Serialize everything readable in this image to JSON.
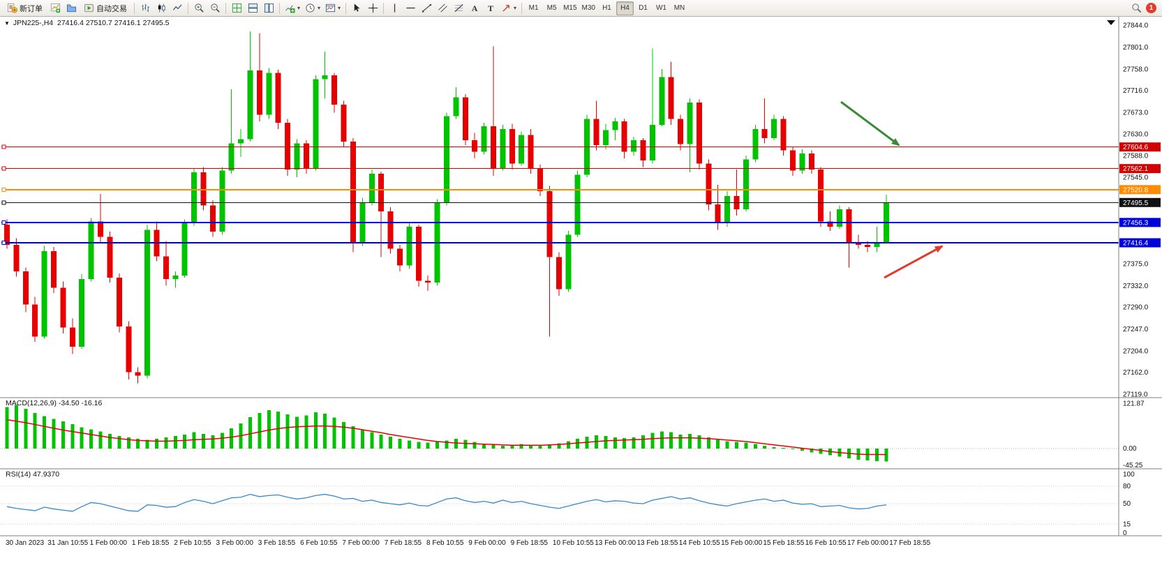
{
  "toolbar": {
    "new_order": "新订单",
    "autotrading": "自动交易",
    "text_tool": "A",
    "label_tool": "T",
    "timeframes": [
      "M1",
      "M5",
      "M15",
      "M30",
      "H1",
      "H4",
      "D1",
      "W1",
      "MN"
    ],
    "active_timeframe": "H4",
    "notification_count": "1"
  },
  "icons": {
    "caret_down": "▾",
    "chart_caret": "▼"
  },
  "chart": {
    "info_line": "JPN225-,H4  27416.4 27510.7 27416.1 27495.5",
    "macd_label": "MACD(12,26,9) -34.50 -16.16",
    "rsi_label": "RSI(14) 47.9370"
  },
  "chart_data": {
    "type": "candlestick",
    "symbol": "JPN225-",
    "timeframe": "H4",
    "ohlc_info": {
      "open": 27416.4,
      "high": 27510.7,
      "low": 27416.1,
      "close": 27495.5
    },
    "colors": {
      "up": "#00c400",
      "down": "#e60000",
      "macd_hist": "#00c400",
      "macd_signal": "#e60000",
      "rsi": "#3a87c8",
      "level_red": "#d40000",
      "level_orange": "#ff8c00",
      "level_blue": "#0000d8",
      "bid_line": "#111111",
      "arrow_green": "#3a8a3a",
      "arrow_red": "#e23b2e"
    },
    "price_axis": {
      "min": 27119.0,
      "max": 27844.0,
      "ticks": [
        27844.0,
        27801.0,
        27758.0,
        27716.0,
        27673.0,
        27630.0,
        27588.0,
        27545.0,
        27375.0,
        27332.0,
        27290.0,
        27247.0,
        27204.0,
        27162.0,
        27119.0
      ]
    },
    "time_labels": [
      "30 Jan 2023",
      "31 Jan 10:55",
      "1 Feb 00:00",
      "1 Feb 18:55",
      "2 Feb 10:55",
      "3 Feb 00:00",
      "3 Feb 18:55",
      "6 Feb 10:55",
      "7 Feb 00:00",
      "7 Feb 18:55",
      "8 Feb 10:55",
      "9 Feb 00:00",
      "9 Feb 18:55",
      "10 Feb 10:55",
      "13 Feb 00:00",
      "13 Feb 18:55",
      "14 Feb 10:55",
      "15 Feb 00:00",
      "15 Feb 18:55",
      "16 Feb 10:55",
      "17 Feb 00:00",
      "17 Feb 18:55"
    ],
    "levels": [
      {
        "price": 27604.6,
        "label": "27604.6",
        "color": "#d40000",
        "width": 1,
        "kind": "resistance"
      },
      {
        "price": 27562.1,
        "label": "27562.1",
        "color": "#d40000",
        "width": 1,
        "kind": "resistance"
      },
      {
        "price": 27520.8,
        "label": "27520.8",
        "color": "#ff8c00",
        "width": 2,
        "kind": "pivot"
      },
      {
        "price": 27495.5,
        "label": "27495.5",
        "color": "#111111",
        "width": 1,
        "kind": "bid"
      },
      {
        "price": 27456.3,
        "label": "27456.3",
        "color": "#0000d8",
        "width": 2,
        "kind": "support"
      },
      {
        "price": 27416.4,
        "label": "27416.4",
        "color": "#0000d8",
        "width": 2,
        "kind": "support"
      }
    ],
    "annotations": [
      {
        "kind": "arrow",
        "name": "green-arrow-annotation",
        "color": "#3a8a3a",
        "from": [
          1205,
          122
        ],
        "to": [
          1288,
          184
        ]
      },
      {
        "kind": "arrow",
        "name": "red-arrow-annotation",
        "color": "#e23b2e",
        "from": [
          1267,
          374
        ],
        "to": [
          1350,
          329
        ]
      }
    ],
    "candles": [
      [
        27452,
        27462,
        27405,
        27412
      ],
      [
        27412,
        27425,
        27350,
        27360
      ],
      [
        27360,
        27368,
        27280,
        27295
      ],
      [
        27295,
        27310,
        27222,
        27232
      ],
      [
        27232,
        27410,
        27228,
        27400
      ],
      [
        27400,
        27408,
        27318,
        27328
      ],
      [
        27328,
        27340,
        27238,
        27250
      ],
      [
        27250,
        27268,
        27198,
        27212
      ],
      [
        27212,
        27355,
        27208,
        27345
      ],
      [
        27345,
        27465,
        27340,
        27458
      ],
      [
        27458,
        27512,
        27418,
        27428
      ],
      [
        27428,
        27438,
        27338,
        27348
      ],
      [
        27348,
        27356,
        27240,
        27252
      ],
      [
        27252,
        27262,
        27148,
        27162
      ],
      [
        27162,
        27172,
        27140,
        27155
      ],
      [
        27155,
        27452,
        27150,
        27442
      ],
      [
        27442,
        27458,
        27380,
        27390
      ],
      [
        27390,
        27420,
        27332,
        27345
      ],
      [
        27345,
        27360,
        27328,
        27352
      ],
      [
        27352,
        27462,
        27348,
        27455
      ],
      [
        27455,
        27562,
        27450,
        27555
      ],
      [
        27555,
        27565,
        27480,
        27490
      ],
      [
        27490,
        27500,
        27428,
        27438
      ],
      [
        27438,
        27565,
        27432,
        27558
      ],
      [
        27558,
        27718,
        27552,
        27612
      ],
      [
        27612,
        27640,
        27585,
        27620
      ],
      [
        27620,
        27832,
        27615,
        27755
      ],
      [
        27755,
        27828,
        27655,
        27668
      ],
      [
        27668,
        27760,
        27660,
        27750
      ],
      [
        27750,
        27756,
        27640,
        27652
      ],
      [
        27652,
        27660,
        27548,
        27560
      ],
      [
        27560,
        27620,
        27545,
        27612
      ],
      [
        27612,
        27618,
        27552,
        27562
      ],
      [
        27562,
        27745,
        27558,
        27738
      ],
      [
        27738,
        27792,
        27700,
        27745
      ],
      [
        27745,
        27750,
        27672,
        27688
      ],
      [
        27688,
        27695,
        27605,
        27615
      ],
      [
        27615,
        27622,
        27398,
        27415
      ],
      [
        27415,
        27505,
        27410,
        27495
      ],
      [
        27495,
        27560,
        27490,
        27552
      ],
      [
        27552,
        27556,
        27388,
        27478
      ],
      [
        27478,
        27486,
        27395,
        27405
      ],
      [
        27405,
        27412,
        27360,
        27372
      ],
      [
        27372,
        27455,
        27365,
        27448
      ],
      [
        27448,
        27452,
        27330,
        27342
      ],
      [
        27342,
        27352,
        27322,
        27338
      ],
      [
        27338,
        27502,
        27332,
        27495
      ],
      [
        27495,
        27672,
        27490,
        27665
      ],
      [
        27665,
        27722,
        27660,
        27702
      ],
      [
        27702,
        27708,
        27608,
        27618
      ],
      [
        27618,
        27632,
        27582,
        27595
      ],
      [
        27595,
        27652,
        27590,
        27645
      ],
      [
        27645,
        27802,
        27548,
        27562
      ],
      [
        27562,
        27648,
        27558,
        27640
      ],
      [
        27640,
        27650,
        27560,
        27572
      ],
      [
        27572,
        27635,
        27568,
        27628
      ],
      [
        27628,
        27640,
        27552,
        27562
      ],
      [
        27562,
        27570,
        27508,
        27518
      ],
      [
        27518,
        27528,
        27232,
        27388
      ],
      [
        27388,
        27398,
        27312,
        27325
      ],
      [
        27325,
        27440,
        27320,
        27432
      ],
      [
        27432,
        27558,
        27428,
        27550
      ],
      [
        27550,
        27668,
        27545,
        27660
      ],
      [
        27660,
        27695,
        27598,
        27608
      ],
      [
        27608,
        27650,
        27600,
        27638
      ],
      [
        27638,
        27662,
        27618,
        27655
      ],
      [
        27655,
        27660,
        27582,
        27595
      ],
      [
        27595,
        27625,
        27588,
        27618
      ],
      [
        27618,
        27622,
        27565,
        27578
      ],
      [
        27578,
        27798,
        27572,
        27648
      ],
      [
        27648,
        27758,
        27645,
        27742
      ],
      [
        27742,
        27772,
        27648,
        27660
      ],
      [
        27660,
        27668,
        27598,
        27610
      ],
      [
        27610,
        27700,
        27555,
        27692
      ],
      [
        27692,
        27698,
        27560,
        27572
      ],
      [
        27572,
        27580,
        27480,
        27492
      ],
      [
        27492,
        27530,
        27442,
        27455
      ],
      [
        27455,
        27518,
        27448,
        27508
      ],
      [
        27508,
        27560,
        27470,
        27482
      ],
      [
        27482,
        27588,
        27478,
        27580
      ],
      [
        27580,
        27648,
        27575,
        27640
      ],
      [
        27640,
        27700,
        27612,
        27622
      ],
      [
        27622,
        27668,
        27618,
        27660
      ],
      [
        27660,
        27665,
        27588,
        27598
      ],
      [
        27598,
        27605,
        27548,
        27558
      ],
      [
        27558,
        27600,
        27552,
        27592
      ],
      [
        27592,
        27598,
        27552,
        27560
      ],
      [
        27560,
        27565,
        27448,
        27458
      ],
      [
        27458,
        27478,
        27440,
        27448
      ],
      [
        27448,
        27490,
        27444,
        27482
      ],
      [
        27482,
        27486,
        27368,
        27418
      ],
      [
        27418,
        27432,
        27405,
        27412
      ],
      [
        27412,
        27420,
        27398,
        27408
      ],
      [
        27408,
        27448,
        27398,
        27418
      ],
      [
        27416.4,
        27510.7,
        27416.1,
        27495.5
      ]
    ],
    "macd": {
      "name": "MACD",
      "params": "12,26,9",
      "value": -34.5,
      "signal_value": -16.16,
      "scale_max": 121.87,
      "scale_zero": 0.0,
      "scale_min": -45.25,
      "hist": [
        112,
        118,
        108,
        96,
        88,
        80,
        74,
        66,
        58,
        52,
        46,
        40,
        34,
        30,
        26,
        24,
        26,
        30,
        34,
        38,
        44,
        40,
        36,
        42,
        55,
        68,
        85,
        96,
        104,
        100,
        92,
        86,
        90,
        98,
        94,
        84,
        72,
        60,
        50,
        44,
        38,
        32,
        26,
        22,
        18,
        16,
        18,
        22,
        26,
        24,
        18,
        12,
        10,
        8,
        10,
        12,
        10,
        8,
        10,
        14,
        20,
        26,
        32,
        36,
        34,
        30,
        28,
        30,
        36,
        42,
        46,
        44,
        38,
        40,
        36,
        30,
        24,
        20,
        18,
        16,
        12,
        8,
        4,
        2,
        -2,
        -6,
        -10,
        -14,
        -18,
        -22,
        -26,
        -30,
        -32,
        -34,
        -34.5
      ],
      "signal": [
        78,
        74,
        70,
        65,
        60,
        55,
        50,
        46,
        42,
        38,
        34,
        30,
        27,
        24,
        22,
        21,
        20,
        20,
        21,
        22,
        24,
        25,
        26,
        28,
        31,
        35,
        40,
        45,
        50,
        54,
        57,
        59,
        60,
        61,
        61,
        60,
        58,
        55,
        51,
        47,
        43,
        38,
        34,
        30,
        26,
        22,
        19,
        17,
        15,
        14,
        13,
        12,
        11,
        10,
        9,
        9,
        9,
        9,
        10,
        11,
        13,
        15,
        17,
        19,
        21,
        22,
        23,
        24,
        25,
        27,
        28,
        29,
        29,
        29,
        28,
        27,
        25,
        23,
        21,
        19,
        16,
        13,
        10,
        7,
        4,
        1,
        -2,
        -5,
        -8,
        -11,
        -13,
        -15,
        -16,
        -16,
        -16.16
      ]
    },
    "rsi": {
      "name": "RSI",
      "params": "14",
      "value": 47.937,
      "scale_labels": [
        100,
        80,
        50,
        15,
        0
      ],
      "level_lines": [
        80,
        50,
        15
      ],
      "values": [
        45,
        42,
        40,
        38,
        44,
        41,
        39,
        37,
        45,
        52,
        50,
        46,
        42,
        38,
        37,
        48,
        47,
        44,
        45,
        52,
        57,
        54,
        50,
        55,
        60,
        61,
        66,
        62,
        64,
        65,
        61,
        58,
        60,
        64,
        66,
        63,
        58,
        59,
        54,
        56,
        52,
        50,
        48,
        51,
        47,
        46,
        52,
        58,
        60,
        55,
        52,
        54,
        51,
        56,
        52,
        54,
        50,
        47,
        44,
        42,
        46,
        50,
        54,
        57,
        53,
        55,
        54,
        51,
        50,
        56,
        59,
        62,
        58,
        60,
        55,
        51,
        48,
        46,
        50,
        53,
        56,
        58,
        54,
        56,
        51,
        49,
        50,
        45,
        46,
        47,
        43,
        41,
        42,
        46,
        47.94
      ]
    }
  }
}
